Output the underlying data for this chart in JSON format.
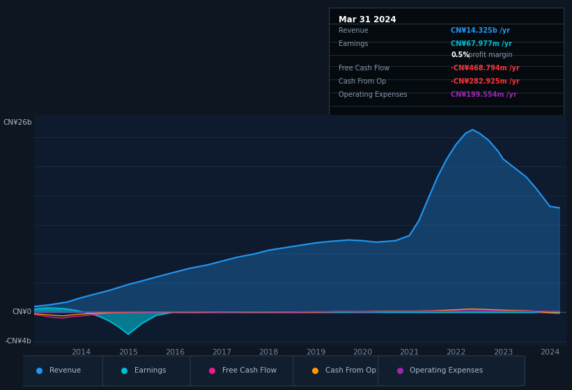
{
  "background_color": "#0e1621",
  "plot_bg_color": "#0e1a2d",
  "colors": {
    "revenue": "#2196f3",
    "earnings": "#00bcd4",
    "free_cash_flow": "#e91e8c",
    "cash_from_op": "#ff9800",
    "operating_expenses": "#9c27b0"
  },
  "legend_entries": [
    "Revenue",
    "Earnings",
    "Free Cash Flow",
    "Cash From Op",
    "Operating Expenses"
  ],
  "info_box": {
    "date": "Mar 31 2024",
    "revenue_label": "Revenue",
    "revenue_val": "CN¥14.325b /yr",
    "earnings_label": "Earnings",
    "earnings_val": "CN¥67.977m /yr",
    "profit_margin": "0.5%",
    "profit_margin_text": " profit margin",
    "fcf_label": "Free Cash Flow",
    "fcf_val": "-CN¥468.794m /yr",
    "cop_label": "Cash From Op",
    "cop_val": "-CN¥282.925m /yr",
    "opex_label": "Operating Expenses",
    "opex_val": "CN¥199.554m /yr"
  },
  "x_ticks": [
    2014,
    2015,
    2016,
    2017,
    2018,
    2019,
    2020,
    2021,
    2022,
    2023,
    2024
  ],
  "x_tick_labels": [
    "2014",
    "2015",
    "2016",
    "2017",
    "2018",
    "2019",
    "2020",
    "2021",
    "2022",
    "2023",
    "2024"
  ],
  "ylim": [
    -4.5,
    27.0
  ],
  "xlim": [
    2013.0,
    2024.35
  ],
  "y_labels": [
    {
      "text": "CN¥26b",
      "y": 26
    },
    {
      "text": "CN¥0",
      "y": 0
    },
    {
      "text": "-CN¥4b",
      "y": -4
    }
  ],
  "grid_color": "#1c2e4a",
  "revenue_x": [
    2013.0,
    2013.3,
    2013.7,
    2014.0,
    2014.3,
    2014.6,
    2015.0,
    2015.3,
    2015.7,
    2016.0,
    2016.3,
    2016.7,
    2017.0,
    2017.3,
    2017.7,
    2018.0,
    2018.3,
    2018.7,
    2019.0,
    2019.3,
    2019.7,
    2020.0,
    2020.3,
    2020.7,
    2021.0,
    2021.2,
    2021.4,
    2021.6,
    2021.8,
    2022.0,
    2022.2,
    2022.35,
    2022.5,
    2022.7,
    2022.9,
    2023.0,
    2023.2,
    2023.5,
    2023.7,
    2024.0,
    2024.2
  ],
  "revenue_y": [
    0.8,
    1.0,
    1.4,
    2.0,
    2.5,
    3.0,
    3.8,
    4.3,
    5.0,
    5.5,
    6.0,
    6.5,
    7.0,
    7.5,
    8.0,
    8.5,
    8.8,
    9.2,
    9.5,
    9.7,
    9.9,
    9.8,
    9.6,
    9.8,
    10.5,
    12.5,
    15.5,
    18.5,
    21.0,
    23.0,
    24.5,
    25.0,
    24.5,
    23.5,
    22.0,
    21.0,
    20.0,
    18.5,
    17.0,
    14.5,
    14.3
  ],
  "earnings_x": [
    2013.0,
    2013.15,
    2013.3,
    2013.5,
    2013.7,
    2013.85,
    2014.0,
    2014.2,
    2014.4,
    2014.6,
    2014.8,
    2015.0,
    2015.3,
    2015.6,
    2015.9,
    2016.0,
    2016.5,
    2017.0,
    2024.0,
    2024.2
  ],
  "earnings_y": [
    0.4,
    0.55,
    0.6,
    0.55,
    0.45,
    0.3,
    0.1,
    -0.15,
    -0.6,
    -1.2,
    -2.0,
    -3.0,
    -1.5,
    -0.4,
    -0.05,
    0.0,
    0.0,
    0.0,
    0.0,
    0.0
  ],
  "fcf_x": [
    2013.0,
    2013.2,
    2013.4,
    2013.6,
    2013.8,
    2014.0,
    2014.3,
    2014.6,
    2015.0,
    2015.5,
    2016.0,
    2016.5,
    2017.0,
    2017.5,
    2018.0,
    2018.5,
    2019.0,
    2019.5,
    2020.0,
    2020.5,
    2021.0,
    2021.5,
    2022.0,
    2022.3,
    2022.6,
    2023.0,
    2023.3,
    2023.6,
    2024.0,
    2024.2
  ],
  "fcf_y": [
    -0.3,
    -0.5,
    -0.7,
    -0.8,
    -0.6,
    -0.5,
    -0.3,
    -0.1,
    -0.05,
    0.0,
    0.0,
    -0.05,
    0.0,
    0.05,
    0.0,
    -0.05,
    0.0,
    0.1,
    0.05,
    0.1,
    0.15,
    0.2,
    0.3,
    0.4,
    0.35,
    0.25,
    0.2,
    0.15,
    -0.1,
    -0.15
  ],
  "cop_x": [
    2013.0,
    2013.2,
    2013.4,
    2013.6,
    2013.8,
    2014.0,
    2014.3,
    2014.6,
    2015.0,
    2015.5,
    2016.0,
    2016.5,
    2017.0,
    2017.5,
    2018.0,
    2018.5,
    2019.0,
    2019.5,
    2020.0,
    2020.5,
    2021.0,
    2021.5,
    2022.0,
    2022.3,
    2022.6,
    2023.0,
    2023.3,
    2023.6,
    2024.0,
    2024.2
  ],
  "cop_y": [
    -0.2,
    -0.3,
    -0.4,
    -0.5,
    -0.35,
    -0.25,
    -0.15,
    -0.05,
    0.0,
    0.05,
    0.0,
    0.0,
    0.05,
    0.0,
    0.0,
    0.05,
    0.05,
    0.1,
    0.1,
    0.15,
    0.15,
    0.2,
    0.35,
    0.45,
    0.4,
    0.3,
    0.25,
    0.2,
    -0.05,
    -0.1
  ],
  "opex_x": [
    2013.0,
    2013.5,
    2014.0,
    2014.5,
    2015.0,
    2015.5,
    2016.0,
    2016.5,
    2017.0,
    2017.5,
    2018.0,
    2018.5,
    2019.0,
    2019.5,
    2020.0,
    2020.5,
    2021.0,
    2021.5,
    2022.0,
    2022.5,
    2023.0,
    2023.5,
    2024.0,
    2024.2
  ],
  "opex_y": [
    0.05,
    0.05,
    0.05,
    0.05,
    0.05,
    0.05,
    0.05,
    0.05,
    0.05,
    0.05,
    0.05,
    0.05,
    0.1,
    0.1,
    0.1,
    0.1,
    0.12,
    0.15,
    0.18,
    0.2,
    0.18,
    0.17,
    0.15,
    0.15
  ]
}
